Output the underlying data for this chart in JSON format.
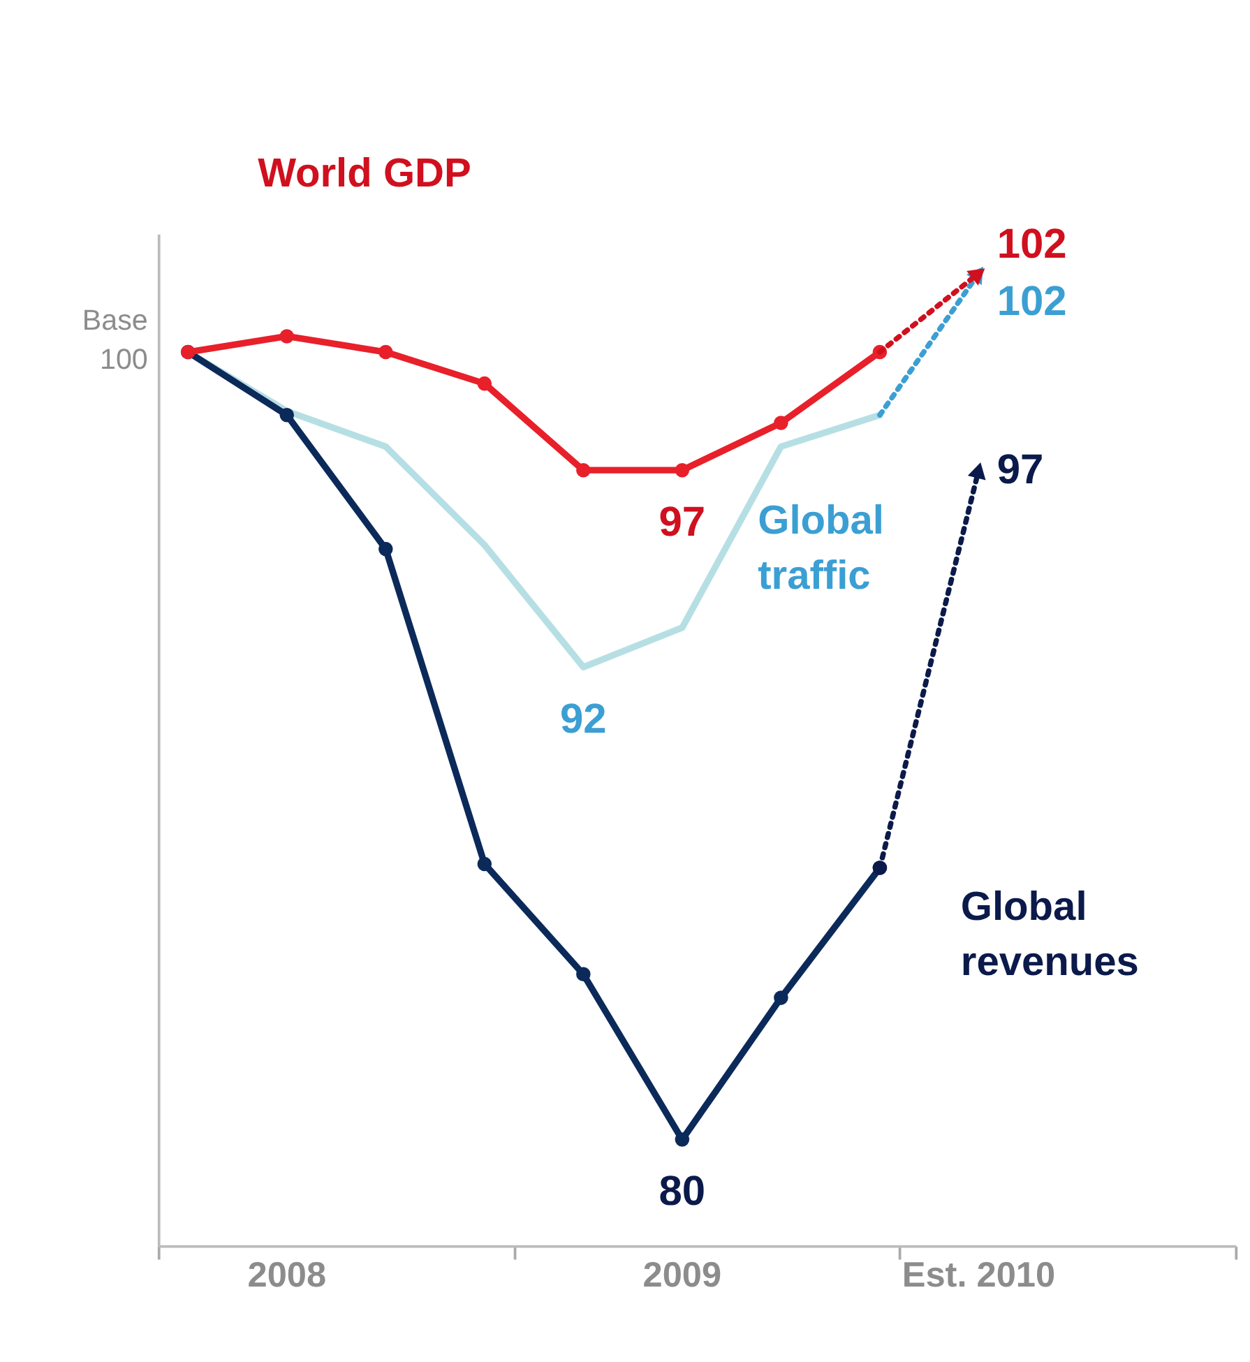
{
  "chart_data": {
    "type": "line",
    "tick_labels": "x",
    "grid": false,
    "categories": [
      null,
      "2008",
      null,
      null,
      null,
      "2009",
      null,
      null,
      "Est. 2010"
    ],
    "ylim": [
      77.3,
      103
    ],
    "annotations": [
      "Base 100"
    ],
    "series": [
      {
        "color": "#b6dfe4",
        "marker": "none",
        "values": [
          100,
          98.5,
          97.6,
          95.1,
          92,
          93,
          97.6,
          98.4,
          null
        ],
        "value_labels": [
          null,
          null,
          null,
          null,
          "92",
          null,
          null,
          null,
          null
        ]
      },
      {
        "name": "Global traffic",
        "color": "#3b9fd3",
        "line_style": "dotted",
        "values": [
          null,
          null,
          null,
          null,
          null,
          null,
          null,
          98.4,
          102
        ],
        "value_labels": [
          null,
          null,
          null,
          null,
          null,
          null,
          null,
          null,
          "102"
        ]
      },
      {
        "color": "#0b2a5a",
        "marker": "circle",
        "values": [
          100,
          98.4,
          95,
          87,
          84.2,
          80,
          83.6,
          86.9,
          null
        ],
        "value_labels": [
          null,
          null,
          null,
          null,
          null,
          "80",
          null,
          null,
          null
        ]
      },
      {
        "name": "Global revenues",
        "color": "#0b1a4a",
        "line_style": "dotted",
        "marker": "circle",
        "values": [
          null,
          null,
          null,
          null,
          null,
          null,
          null,
          86.9,
          97
        ],
        "value_labels": [
          null,
          null,
          null,
          null,
          null,
          null,
          null,
          null,
          "97"
        ]
      },
      {
        "color": "#e8202a",
        "marker": "circle",
        "values": [
          100,
          100.4,
          100,
          99.2,
          97,
          97,
          98.2,
          100,
          null
        ],
        "value_labels": [
          null,
          null,
          null,
          null,
          null,
          "97",
          null,
          null,
          null
        ]
      },
      {
        "name": "World GDP",
        "color": "#d0101e",
        "line_style": "dotted",
        "values": [
          null,
          null,
          null,
          null,
          null,
          null,
          null,
          100,
          102
        ],
        "value_labels": [
          null,
          null,
          null,
          null,
          null,
          null,
          null,
          null,
          "102"
        ]
      }
    ]
  }
}
